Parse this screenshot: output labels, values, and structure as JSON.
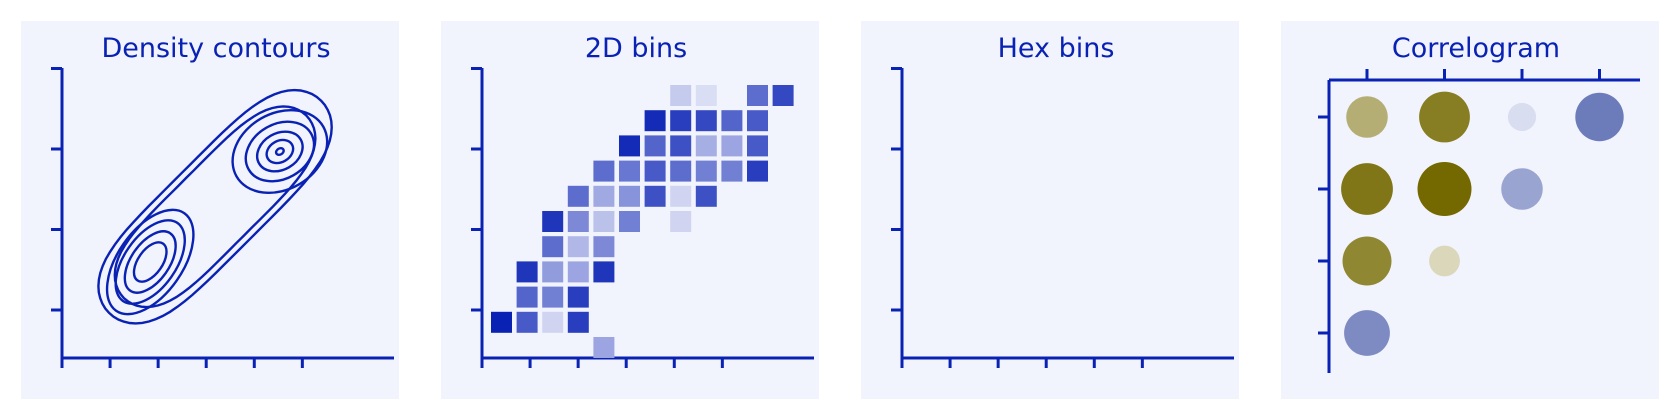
{
  "colors": {
    "panel_bg": "#f2f4fd",
    "primary": "#0a22b4",
    "olive": "#746800",
    "light_olive": "#dedcc8"
  },
  "chart_data": [
    {
      "type": "contour",
      "title": "Density contours",
      "xlim": [
        0,
        6
      ],
      "ylim": [
        0,
        4
      ],
      "x_ticks": 6,
      "y_ticks": 4,
      "levels": 6,
      "peaks": [
        {
          "x": 1.8,
          "y": 1.6
        },
        {
          "x": 4.2,
          "y": 2.6
        }
      ]
    },
    {
      "type": "heatmap",
      "title": "2D bins",
      "xlim": [
        0,
        6
      ],
      "ylim": [
        0,
        4
      ],
      "x_ticks": 6,
      "y_ticks": 4,
      "grid": {
        "cols": 11,
        "rows": 11,
        "origin_x": 0,
        "origin_y": 0.18,
        "cell_w": 0.5,
        "cell_h": 0.3
      },
      "cells": [
        [
          4,
          0,
          0.3
        ],
        [
          0,
          1,
          1
        ],
        [
          1,
          1,
          0.7
        ],
        [
          2,
          1,
          0.05
        ],
        [
          3,
          1,
          0.85
        ],
        [
          1,
          2,
          0.65
        ],
        [
          2,
          2,
          0.5
        ],
        [
          3,
          2,
          0.85
        ],
        [
          1,
          3,
          0.9
        ],
        [
          2,
          3,
          0.35
        ],
        [
          3,
          3,
          0.3
        ],
        [
          4,
          3,
          0.9
        ],
        [
          2,
          4,
          0.6
        ],
        [
          3,
          4,
          0.2
        ],
        [
          4,
          4,
          0.45
        ],
        [
          2,
          5,
          0.9
        ],
        [
          3,
          5,
          0.45
        ],
        [
          4,
          5,
          0.15
        ],
        [
          5,
          5,
          0.5
        ],
        [
          7,
          5,
          0.05
        ],
        [
          3,
          6,
          0.6
        ],
        [
          4,
          6,
          0.28
        ],
        [
          5,
          6,
          0.4
        ],
        [
          6,
          6,
          0.75
        ],
        [
          7,
          6,
          0.05
        ],
        [
          8,
          6,
          0.75
        ],
        [
          4,
          7,
          0.6
        ],
        [
          5,
          7,
          0.55
        ],
        [
          6,
          7,
          0.7
        ],
        [
          7,
          7,
          0.6
        ],
        [
          8,
          7,
          0.5
        ],
        [
          9,
          7,
          0.5
        ],
        [
          10,
          7,
          0.85
        ],
        [
          5,
          8,
          0.95
        ],
        [
          6,
          8,
          0.65
        ],
        [
          7,
          8,
          0.75
        ],
        [
          8,
          8,
          0.25
        ],
        [
          9,
          8,
          0.3
        ],
        [
          10,
          8,
          0.7
        ],
        [
          6,
          9,
          0.95
        ],
        [
          7,
          9,
          0.85
        ],
        [
          8,
          9,
          0.8
        ],
        [
          9,
          9,
          0.65
        ],
        [
          10,
          9,
          0.7
        ],
        [
          7,
          10,
          0.1
        ],
        [
          8,
          10,
          0
        ],
        [
          10,
          10,
          0.6
        ],
        [
          11,
          10,
          0.8
        ]
      ]
    },
    {
      "type": "hexbin",
      "title": "Hex bins",
      "xlim": [
        0,
        6
      ],
      "ylim": [
        0,
        4
      ],
      "x_ticks": 6,
      "y_ticks": 4,
      "points": []
    },
    {
      "type": "correlogram",
      "title": "Correlogram",
      "n": 4,
      "cells": [
        {
          "row": 0,
          "col": 0,
          "value": 0.5
        },
        {
          "row": 0,
          "col": 1,
          "value": 0.85
        },
        {
          "row": 0,
          "col": 2,
          "value": -0.15
        },
        {
          "row": 0,
          "col": 3,
          "value": -0.75
        },
        {
          "row": 1,
          "col": 0,
          "value": 0.9
        },
        {
          "row": 1,
          "col": 1,
          "value": 1.0
        },
        {
          "row": 1,
          "col": 2,
          "value": -0.5
        },
        {
          "row": 2,
          "col": 0,
          "value": 0.78
        },
        {
          "row": 2,
          "col": 1,
          "value": 0.2
        },
        {
          "row": 3,
          "col": 0,
          "value": -0.65
        }
      ]
    }
  ]
}
